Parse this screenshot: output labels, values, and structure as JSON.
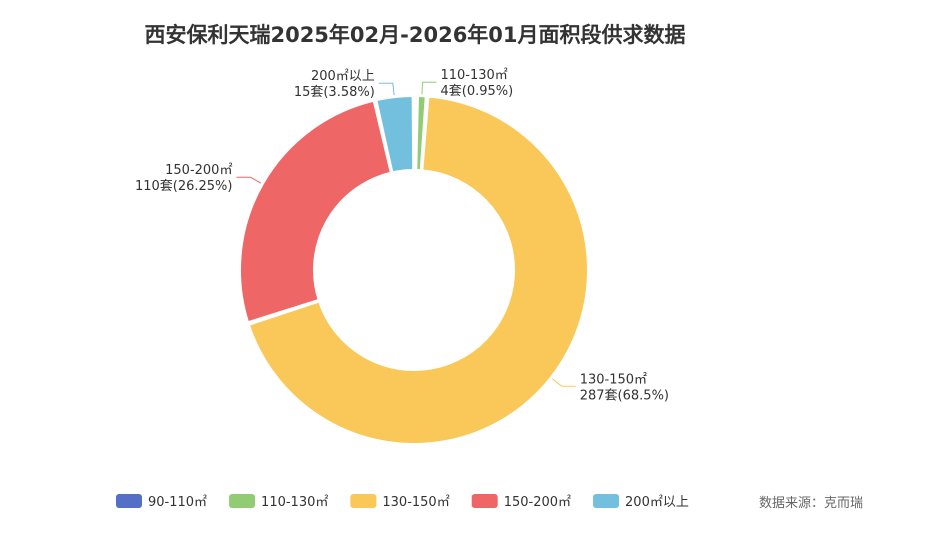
{
  "chart_data": {
    "type": "pie",
    "title": "西安保利天瑞2025年02月-2026年01月面积段供求数据",
    "slices": [
      {
        "name": "90-110㎡",
        "value": 1,
        "percent": "",
        "label_line1": "",
        "label_line2": "",
        "color": "#5470c6"
      },
      {
        "name": "110-130㎡",
        "value": 4,
        "percent": "0.95%",
        "label_line1": "110-130㎡",
        "label_line2": "4套(0.95%)",
        "color": "#91cc75"
      },
      {
        "name": "130-150㎡",
        "value": 287,
        "percent": "68.5%",
        "label_line1": "130-150㎡",
        "label_line2": "287套(68.5%)",
        "color": "#fac858"
      },
      {
        "name": "150-200㎡",
        "value": 110,
        "percent": "26.25%",
        "label_line1": "150-200㎡",
        "label_line2": "110套(26.25%)",
        "color": "#ee6666"
      },
      {
        "name": "200㎡以上",
        "value": 15,
        "percent": "3.58%",
        "label_line1": "200㎡以上",
        "label_line2": "15套(3.58%)",
        "color": "#73c0de"
      }
    ],
    "legend": [
      "90-110㎡",
      "110-130㎡",
      "130-150㎡",
      "150-200㎡",
      "200㎡以上"
    ],
    "legend_position": "bottom"
  },
  "source": "数据来源：克而瑞"
}
